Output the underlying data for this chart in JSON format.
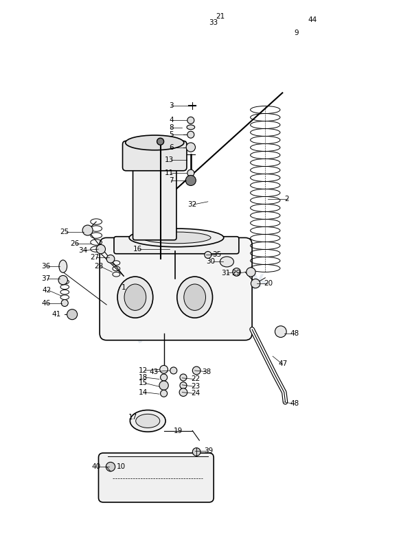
{
  "bg_color": "#ffffff",
  "line_color": "#000000",
  "watermark_color": "#c8d4e0",
  "label_positions": {
    "1": [
      1.62,
      4.55,
      null,
      null,
      "right"
    ],
    "2": [
      4.38,
      6.1,
      4.1,
      6.1,
      "left"
    ],
    "3": [
      2.45,
      7.72,
      2.8,
      7.72,
      "right"
    ],
    "4": [
      2.45,
      7.47,
      2.68,
      7.47,
      "right"
    ],
    "5": [
      2.45,
      7.22,
      2.68,
      7.22,
      "right"
    ],
    "6": [
      2.45,
      7.0,
      2.67,
      7.0,
      "right"
    ],
    "7": [
      2.45,
      6.42,
      2.67,
      6.42,
      "right"
    ],
    "8": [
      2.45,
      7.34,
      2.6,
      7.34,
      "right"
    ],
    "9": [
      4.55,
      9.0,
      4.35,
      8.92,
      "left"
    ],
    "10": [
      1.45,
      1.42,
      null,
      null,
      "left"
    ],
    "11": [
      2.45,
      6.55,
      2.68,
      6.55,
      "right"
    ],
    "12": [
      2.0,
      3.1,
      2.2,
      3.12,
      "right"
    ],
    "13": [
      2.45,
      6.78,
      2.68,
      6.78,
      "right"
    ],
    "14": [
      2.0,
      2.72,
      2.2,
      2.69,
      "right"
    ],
    "15": [
      2.0,
      2.88,
      2.2,
      2.82,
      "right"
    ],
    "16": [
      1.9,
      5.22,
      2.38,
      5.22,
      "right"
    ],
    "17": [
      1.82,
      2.28,
      null,
      null,
      "right"
    ],
    "18": [
      2.0,
      2.98,
      2.2,
      2.95,
      "right"
    ],
    "19": [
      2.45,
      2.05,
      null,
      null,
      "left"
    ],
    "20": [
      4.02,
      4.62,
      3.9,
      4.62,
      "left"
    ],
    "21": [
      3.35,
      9.28,
      3.6,
      9.28,
      "right"
    ],
    "22": [
      2.75,
      2.95,
      2.6,
      2.97,
      "left"
    ],
    "23": [
      2.75,
      2.82,
      2.6,
      2.85,
      "left"
    ],
    "24": [
      2.75,
      2.7,
      2.6,
      2.72,
      "left"
    ],
    "25": [
      0.62,
      5.52,
      0.88,
      5.52,
      "right"
    ],
    "26": [
      0.8,
      5.32,
      1.02,
      5.32,
      "right"
    ],
    "27": [
      1.15,
      5.08,
      1.32,
      5.08,
      "right"
    ],
    "28": [
      1.22,
      4.92,
      1.38,
      4.82,
      "right"
    ],
    "29": [
      3.62,
      4.8,
      3.72,
      4.82,
      "right"
    ],
    "30": [
      3.18,
      5.0,
      3.32,
      5.0,
      "right"
    ],
    "31": [
      3.44,
      4.8,
      3.52,
      4.82,
      "right"
    ],
    "32": [
      2.85,
      6.0,
      3.05,
      6.05,
      "right"
    ],
    "33": [
      3.22,
      9.18,
      3.38,
      9.2,
      "right"
    ],
    "34": [
      0.95,
      5.2,
      1.14,
      5.22,
      "right"
    ],
    "35": [
      3.12,
      5.12,
      3.02,
      5.12,
      "left"
    ],
    "36": [
      0.3,
      4.92,
      0.46,
      4.92,
      "right"
    ],
    "37": [
      0.3,
      4.7,
      0.46,
      4.7,
      "right"
    ],
    "38": [
      2.95,
      3.08,
      2.82,
      3.1,
      "left"
    ],
    "39": [
      2.98,
      1.7,
      2.82,
      1.7,
      "left"
    ],
    "40": [
      1.18,
      1.42,
      1.32,
      1.42,
      "right"
    ],
    "41": [
      0.48,
      4.08,
      null,
      null,
      "right"
    ],
    "42": [
      0.32,
      4.5,
      0.5,
      4.4,
      "right"
    ],
    "43": [
      2.18,
      3.08,
      2.38,
      3.1,
      "right"
    ],
    "44": [
      4.8,
      9.22,
      4.68,
      9.22,
      "left"
    ],
    "45": [
      4.88,
      9.62,
      null,
      null,
      "left"
    ],
    "46": [
      0.3,
      4.28,
      0.5,
      4.28,
      "right"
    ],
    "47": [
      4.28,
      3.22,
      4.18,
      3.35,
      "left"
    ],
    "48a": [
      4.48,
      3.75,
      4.38,
      3.75,
      "left"
    ],
    "48b": [
      4.48,
      2.52,
      4.38,
      2.55,
      "left"
    ]
  }
}
